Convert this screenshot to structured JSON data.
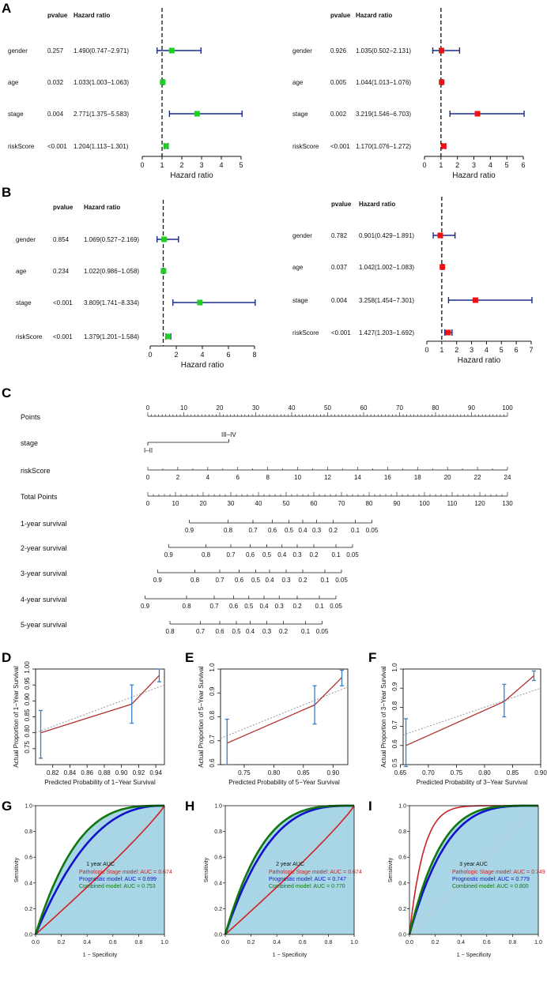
{
  "panel_letters": {
    "A": "A",
    "B": "B",
    "C": "C",
    "D": "D",
    "E": "E",
    "F": "F",
    "G": "G",
    "H": "H",
    "I": "I"
  },
  "forest_headers": {
    "pvalue": "pvalue",
    "hr": "Hazard ratio"
  },
  "forest_axis_label": "Hazard ratio",
  "nomogram_rows": [
    "Points",
    "stage",
    "riskScore",
    "Total Points",
    "1-year survival",
    "2-year survival",
    "3-year survival",
    "4-year survival",
    "5-year survival"
  ],
  "nomogram_stage_levels": [
    "I–II",
    "III–IV"
  ],
  "chart_data": [
    {
      "id": "A_left",
      "type": "forest",
      "color": "#22cc22",
      "xlim": [
        0,
        5
      ],
      "ticks": [
        0,
        1,
        2,
        3,
        4,
        5
      ],
      "xlabel": "Hazard ratio",
      "rows": [
        {
          "label": "gender",
          "pvalue": "0.257",
          "hr_text": "1.490(0.747−2.971)",
          "hr": 1.49,
          "lo": 0.747,
          "hi": 2.971
        },
        {
          "label": "age",
          "pvalue": "0.032",
          "hr_text": "1.033(1.003−1.063)",
          "hr": 1.033,
          "lo": 1.003,
          "hi": 1.063
        },
        {
          "label": "stage",
          "pvalue": "0.004",
          "hr_text": "2.771(1.375−5.583)",
          "hr": 2.771,
          "lo": 1.375,
          "hi": 5.583
        },
        {
          "label": "riskScore",
          "pvalue": "<0.001",
          "hr_text": "1.204(1.113−1.301)",
          "hr": 1.204,
          "lo": 1.113,
          "hi": 1.301
        }
      ]
    },
    {
      "id": "A_right",
      "type": "forest",
      "color": "#ee1111",
      "xlim": [
        0,
        6
      ],
      "ticks": [
        0,
        1,
        2,
        3,
        4,
        5,
        6
      ],
      "xlabel": "Hazard ratio",
      "rows": [
        {
          "label": "gender",
          "pvalue": "0.926",
          "hr_text": "1.035(0.502−2.131)",
          "hr": 1.035,
          "lo": 0.502,
          "hi": 2.131
        },
        {
          "label": "age",
          "pvalue": "0.005",
          "hr_text": "1.044(1.013−1.076)",
          "hr": 1.044,
          "lo": 1.013,
          "hi": 1.076
        },
        {
          "label": "stage",
          "pvalue": "0.002",
          "hr_text": "3.219(1.546−6.703)",
          "hr": 3.219,
          "lo": 1.546,
          "hi": 6.703
        },
        {
          "label": "riskScore",
          "pvalue": "<0.001",
          "hr_text": "1.170(1.076−1.272)",
          "hr": 1.17,
          "lo": 1.076,
          "hi": 1.272
        }
      ]
    },
    {
      "id": "B_left",
      "type": "forest",
      "color": "#22cc22",
      "xlim": [
        0,
        8
      ],
      "ticks": [
        0,
        2,
        4,
        6,
        8
      ],
      "xlabel": "Hazard ratio",
      "rows": [
        {
          "label": "gender",
          "pvalue": "0.854",
          "hr_text": "1.069(0.527−2.169)",
          "hr": 1.069,
          "lo": 0.527,
          "hi": 2.169
        },
        {
          "label": "age",
          "pvalue": "0.234",
          "hr_text": "1.022(0.986−1.058)",
          "hr": 1.022,
          "lo": 0.986,
          "hi": 1.058
        },
        {
          "label": "stage",
          "pvalue": "<0.001",
          "hr_text": "3.809(1.741−8.334)",
          "hr": 3.809,
          "lo": 1.741,
          "hi": 8.334
        },
        {
          "label": "riskScore",
          "pvalue": "<0.001",
          "hr_text": "1.379(1.201−1.584)",
          "hr": 1.379,
          "lo": 1.201,
          "hi": 1.584
        }
      ]
    },
    {
      "id": "B_right",
      "type": "forest",
      "color": "#ee1111",
      "xlim": [
        0,
        7
      ],
      "ticks": [
        0,
        1,
        2,
        3,
        4,
        5,
        6,
        7
      ],
      "xlabel": "Hazard ratio",
      "rows": [
        {
          "label": "gender",
          "pvalue": "0.782",
          "hr_text": "0.901(0.429−1.891)",
          "hr": 0.901,
          "lo": 0.429,
          "hi": 1.891
        },
        {
          "label": "age",
          "pvalue": "0.037",
          "hr_text": "1.042(1.002−1.083)",
          "hr": 1.042,
          "lo": 1.002,
          "hi": 1.083
        },
        {
          "label": "stage",
          "pvalue": "0.004",
          "hr_text": "3.258(1.454−7.301)",
          "hr": 3.258,
          "lo": 1.454,
          "hi": 7.301
        },
        {
          "label": "riskScore",
          "pvalue": "<0.001",
          "hr_text": "1.427(1.203−1.692)",
          "hr": 1.427,
          "lo": 1.203,
          "hi": 1.692
        }
      ]
    },
    {
      "id": "C_nomogram",
      "type": "nomogram",
      "points_ticks": [
        0,
        10,
        20,
        30,
        40,
        50,
        60,
        70,
        80,
        90,
        100
      ],
      "stage_levels": [
        {
          "label": "I–II",
          "points": 0
        },
        {
          "label": "III–IV",
          "points": 22.5
        }
      ],
      "riskScore_ticks": [
        0,
        2,
        4,
        6,
        8,
        10,
        12,
        14,
        16,
        18,
        20,
        22,
        24
      ],
      "riskScore_range": [
        0,
        24
      ],
      "total_points_ticks": [
        0,
        10,
        20,
        30,
        40,
        50,
        60,
        70,
        80,
        90,
        100,
        110,
        120,
        130
      ],
      "total_points_range": [
        0,
        130
      ],
      "survival_scales": [
        {
          "label": "1-year survival",
          "ticks": [
            {
              "v": "0.9",
              "tp": 15
            },
            {
              "v": "0.8",
              "tp": 29
            },
            {
              "v": "0.7",
              "tp": 38
            },
            {
              "v": "0.6",
              "tp": 45
            },
            {
              "v": "0.5",
              "tp": 51
            },
            {
              "v": "0.4",
              "tp": 56
            },
            {
              "v": "0.3",
              "tp": 61
            },
            {
              "v": "0.2",
              "tp": 67
            },
            {
              "v": "0.1",
              "tp": 75
            },
            {
              "v": "0.05",
              "tp": 81
            }
          ]
        },
        {
          "label": "2-year survival",
          "ticks": [
            {
              "v": "0.9",
              "tp": 7.5
            },
            {
              "v": "0.8",
              "tp": 21
            },
            {
              "v": "0.7",
              "tp": 30
            },
            {
              "v": "0.6",
              "tp": 37
            },
            {
              "v": "0.5",
              "tp": 43
            },
            {
              "v": "0.4",
              "tp": 48.5
            },
            {
              "v": "0.3",
              "tp": 54
            },
            {
              "v": "0.2",
              "tp": 60
            },
            {
              "v": "0.1",
              "tp": 68
            },
            {
              "v": "0.05",
              "tp": 74
            }
          ]
        },
        {
          "label": "3-year survival",
          "ticks": [
            {
              "v": "0.9",
              "tp": 3.5
            },
            {
              "v": "0.8",
              "tp": 17
            },
            {
              "v": "0.7",
              "tp": 26
            },
            {
              "v": "0.6",
              "tp": 33
            },
            {
              "v": "0.5",
              "tp": 39
            },
            {
              "v": "0.4",
              "tp": 44
            },
            {
              "v": "0.3",
              "tp": 50
            },
            {
              "v": "0.2",
              "tp": 56
            },
            {
              "v": "0.1",
              "tp": 64
            },
            {
              "v": "0.05",
              "tp": 70
            }
          ]
        },
        {
          "label": "4-year survival",
          "ticks": [
            {
              "v": "0.9",
              "tp": -1
            },
            {
              "v": "0.8",
              "tp": 14
            },
            {
              "v": "0.7",
              "tp": 24
            },
            {
              "v": "0.6",
              "tp": 31
            },
            {
              "v": "0.5",
              "tp": 36.5
            },
            {
              "v": "0.4",
              "tp": 42
            },
            {
              "v": "0.3",
              "tp": 47.5
            },
            {
              "v": "0.2",
              "tp": 54
            },
            {
              "v": "0.1",
              "tp": 62
            },
            {
              "v": "0.05",
              "tp": 68
            }
          ]
        },
        {
          "label": "5-year survival",
          "ticks": [
            {
              "v": "0.8",
              "tp": 8
            },
            {
              "v": "0.7",
              "tp": 19
            },
            {
              "v": "0.6",
              "tp": 26
            },
            {
              "v": "0.5",
              "tp": 32
            },
            {
              "v": "0.4",
              "tp": 37
            },
            {
              "v": "0.3",
              "tp": 43
            },
            {
              "v": "0.2",
              "tp": 49
            },
            {
              "v": "0.1",
              "tp": 57
            },
            {
              "v": "0.05",
              "tp": 63
            }
          ]
        }
      ]
    },
    {
      "id": "D",
      "type": "line",
      "xlabel": "Predicted Probability of 1−Year Survival",
      "ylabel": "Actual Proportion of 1−Year Survival",
      "xlim": [
        0.8,
        0.95
      ],
      "ylim": [
        0.7,
        1.0
      ],
      "xticks": [
        0.82,
        0.84,
        0.86,
        0.88,
        0.9,
        0.92,
        0.94
      ],
      "xtick_labels": [
        "0.82",
        "0.84",
        "0.86",
        "0.88",
        "0.90",
        "0.92",
        "0.94"
      ],
      "yticks": [
        0.75,
        0.8,
        0.85,
        0.9,
        0.95,
        1.0
      ],
      "ytick_labels": [
        "0.75",
        "0.80",
        "0.85",
        "0.90",
        "0.95",
        "1.00"
      ],
      "points": [
        {
          "x": 0.806,
          "y": 0.8,
          "lo": 0.72,
          "hi": 0.87
        },
        {
          "x": 0.912,
          "y": 0.89,
          "lo": 0.83,
          "hi": 0.95
        },
        {
          "x": 0.944,
          "y": 0.98,
          "lo": 0.96,
          "hi": 1.0
        }
      ],
      "ref_line": [
        [
          0.8,
          0.8
        ],
        [
          0.95,
          0.95
        ]
      ]
    },
    {
      "id": "E",
      "type": "line",
      "xlabel": "Predicted Probability of 5−Year Survival",
      "ylabel": "Actual Proportion of 5−Year Survival",
      "xlim": [
        0.71,
        0.925
      ],
      "ylim": [
        0.6,
        1.0
      ],
      "xticks": [
        0.75,
        0.8,
        0.85,
        0.9
      ],
      "xtick_labels": [
        "0.75",
        "0.80",
        "0.85",
        "0.90"
      ],
      "yticks": [
        0.6,
        0.7,
        0.8,
        0.9,
        1.0
      ],
      "ytick_labels": [
        "0.6",
        "0.7",
        "0.8",
        "0.9",
        "1.0"
      ],
      "points": [
        {
          "x": 0.721,
          "y": 0.69,
          "lo": 0.6,
          "hi": 0.79
        },
        {
          "x": 0.869,
          "y": 0.85,
          "lo": 0.77,
          "hi": 0.93
        },
        {
          "x": 0.915,
          "y": 0.965,
          "lo": 0.93,
          "hi": 0.995
        }
      ],
      "ref_line": [
        [
          0.71,
          0.71
        ],
        [
          0.925,
          0.925
        ]
      ]
    },
    {
      "id": "F",
      "type": "line",
      "xlabel": "Predicted Probability of 3−Year Survival",
      "ylabel": "Actual Proportion of 3−Year Survival",
      "xlim": [
        0.655,
        0.9
      ],
      "ylim": [
        0.5,
        1.0
      ],
      "xticks": [
        0.65,
        0.7,
        0.75,
        0.8,
        0.85,
        0.9
      ],
      "xtick_labels": [
        "0.65",
        "0.70",
        "0.75",
        "0.80",
        "0.85",
        "0.90"
      ],
      "yticks": [
        0.5,
        0.6,
        0.7,
        0.8,
        0.9,
        1.0
      ],
      "ytick_labels": [
        "0.5",
        "0.6",
        "0.7",
        "0.8",
        "0.9",
        "1.0"
      ],
      "points": [
        {
          "x": 0.66,
          "y": 0.6,
          "lo": 0.49,
          "hi": 0.74
        },
        {
          "x": 0.835,
          "y": 0.83,
          "lo": 0.75,
          "hi": 0.92
        },
        {
          "x": 0.888,
          "y": 0.965,
          "lo": 0.94,
          "hi": 0.99
        }
      ],
      "ref_line": [
        [
          0.655,
          0.655
        ],
        [
          0.9,
          0.9
        ]
      ]
    },
    {
      "id": "G",
      "type": "area",
      "title": "1 year AUC",
      "xlabel": "1 − Specificity",
      "ylabel": "Sensitivity",
      "xlim": [
        0,
        1
      ],
      "ylim": [
        0,
        1
      ],
      "ticks": [
        "0.0",
        "0.2",
        "0.4",
        "0.6",
        "0.8",
        "1.0"
      ],
      "series": [
        {
          "name": "Pathologic Stage model: AUC = 0.674",
          "auc": 0.674,
          "color": "#cc2222",
          "k": 0.9
        },
        {
          "name": "Prognostic model: AUC = 0.699",
          "auc": 0.699,
          "color": "#1111cc",
          "k": 2.4
        },
        {
          "name": "Combined model: AUC = 0.753",
          "auc": 0.753,
          "color": "#117711",
          "k": 3.2
        }
      ]
    },
    {
      "id": "H",
      "type": "area",
      "title": "2 year AUC",
      "xlabel": "1 − Specificity",
      "ylabel": "Sensitivity",
      "xlim": [
        0,
        1
      ],
      "ylim": [
        0,
        1
      ],
      "ticks": [
        "0.0",
        "0.2",
        "0.4",
        "0.6",
        "0.8",
        "1.0"
      ],
      "series": [
        {
          "name": "Pathologic Stage model: AUC = 0.674",
          "auc": 0.674,
          "color": "#cc2222",
          "k": 0.9
        },
        {
          "name": "Prognostic model: AUC = 0.747",
          "auc": 0.747,
          "color": "#1111cc",
          "k": 3.0
        },
        {
          "name": "Combined model: AUC = 0.770",
          "auc": 0.77,
          "color": "#117711",
          "k": 3.5
        }
      ]
    },
    {
      "id": "I",
      "type": "area",
      "title": "3 year AUC",
      "xlabel": "1 − Specificity",
      "ylabel": "Sensitivity",
      "xlim": [
        0,
        1
      ],
      "ylim": [
        0,
        1
      ],
      "ticks": [
        "0.0",
        "0.2",
        "0.4",
        "0.6",
        "0.8",
        "1.0"
      ],
      "series": [
        {
          "name": "Pathologic Stage model: AUC = 0.749",
          "auc": 0.749,
          "color": "#cc2222",
          "k": 9
        },
        {
          "name": "Prognostic model: AUC = 0.779",
          "auc": 0.779,
          "color": "#1111cc",
          "k": 3.6
        },
        {
          "name": "Combined model: AUC = 0.800",
          "auc": 0.8,
          "color": "#117711",
          "k": 4.2
        }
      ]
    }
  ]
}
